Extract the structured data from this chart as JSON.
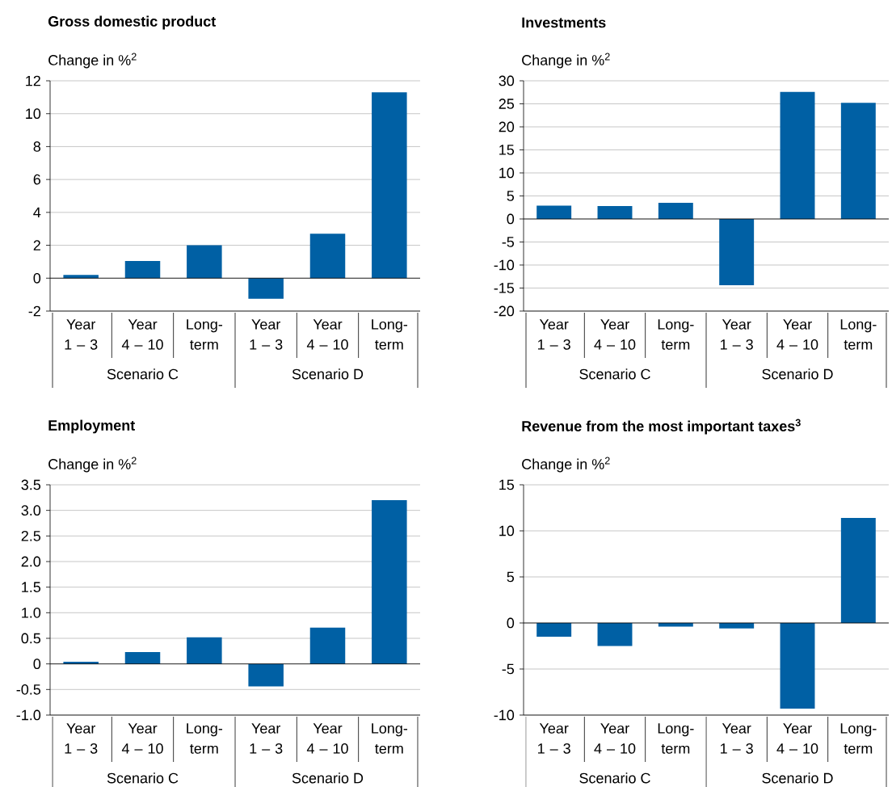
{
  "chart_data": [
    {
      "type": "bar",
      "title": "Gross domestic product",
      "ylabel": "Change in %$^{2}$",
      "categories": [
        "Year 1 – 3",
        "Year 4 – 10",
        "Long-term",
        "Year 1 – 3",
        "Year 4 – 10",
        "Long-term"
      ],
      "annotations": [
        "Scenario C",
        "Scenario D"
      ],
      "values": [
        0.2,
        1.05,
        2.0,
        -1.25,
        2.7,
        11.3
      ],
      "color": "#0060a4",
      "ylim": [
        -2,
        12
      ],
      "yticks": [
        -2,
        0,
        2,
        4,
        6,
        8,
        10,
        12
      ],
      "grid": "y"
    },
    {
      "type": "bar",
      "title": "Investments",
      "ylabel": "Change in %$^{2}$",
      "categories": [
        "Year 1 – 3",
        "Year 4 – 10",
        "Long-term",
        "Year 1 – 3",
        "Year 4 – 10",
        "Long-term"
      ],
      "annotations": [
        "Scenario C",
        "Scenario D"
      ],
      "values": [
        2.9,
        2.8,
        3.5,
        -14.4,
        27.6,
        25.2
      ],
      "color": "#0060a4",
      "ylim": [
        -20,
        30
      ],
      "yticks": [
        -20,
        -15,
        -10,
        -5,
        0,
        5,
        10,
        15,
        20,
        25,
        30
      ],
      "grid": "y"
    },
    {
      "type": "bar",
      "title": "Employment",
      "ylabel": "Change in %$^{2}$",
      "categories": [
        "Year 1 – 3",
        "Year 4 – 10",
        "Long-term",
        "Year 1 – 3",
        "Year 4 – 10",
        "Long-term"
      ],
      "annotations": [
        "Scenario C",
        "Scenario D"
      ],
      "values": [
        0.04,
        0.23,
        0.52,
        -0.44,
        0.71,
        3.2
      ],
      "color": "#0060a4",
      "ylim": [
        -1,
        3.5
      ],
      "yticks": [
        {
          "value": -1,
          "label": "-1.0"
        },
        -0.5,
        0,
        0.5,
        {
          "value": 1,
          "label": "1.0"
        },
        1.5,
        {
          "value": 2,
          "label": "2.0"
        },
        2.5,
        {
          "value": 3,
          "label": "3.0"
        },
        3.5
      ],
      "grid": "y"
    },
    {
      "type": "bar",
      "title": "Revenue from the most important taxes$^{3}$",
      "ylabel": "Change in %$^{2}$",
      "categories": [
        "Year 1 – 3",
        "Year 4 – 10",
        "Long-term",
        "Year 1 – 3",
        "Year 4 – 10",
        "Long-term"
      ],
      "annotations": [
        "Scenario C",
        "Scenario D"
      ],
      "values": [
        -1.5,
        -2.5,
        -0.4,
        -0.6,
        -9.3,
        11.4
      ],
      "color": "#0060a4",
      "ylim": [
        -10,
        15
      ],
      "yticks": [
        -10,
        -5,
        0,
        5,
        10,
        15
      ],
      "grid": "y"
    }
  ]
}
